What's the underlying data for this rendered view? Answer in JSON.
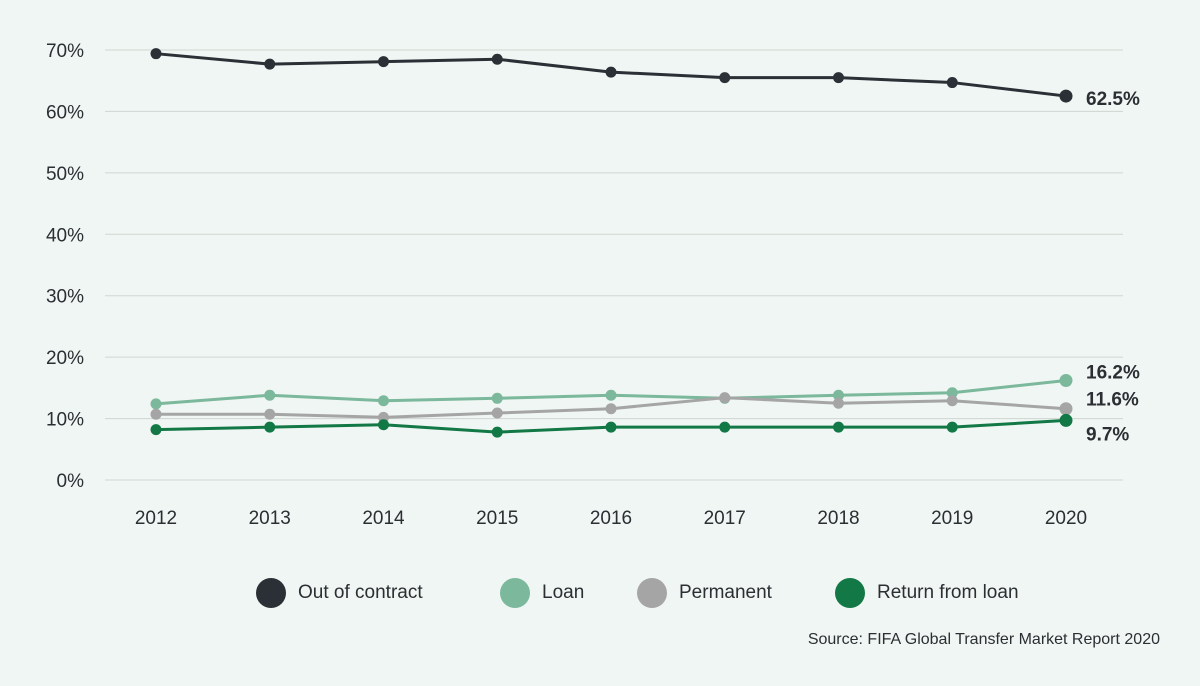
{
  "chart_data": {
    "type": "line",
    "title": "",
    "xlabel": "",
    "ylabel": "",
    "categories": [
      "2012",
      "2013",
      "2014",
      "2015",
      "2016",
      "2017",
      "2018",
      "2019",
      "2020"
    ],
    "ylim": [
      0,
      70
    ],
    "yticks": [
      "0%",
      "10%",
      "20%",
      "30%",
      "40%",
      "50%",
      "60%",
      "70%"
    ],
    "grid": true,
    "series": [
      {
        "name": "Out of contract",
        "color": "#2b3036",
        "values": [
          69.4,
          67.7,
          68.1,
          68.5,
          66.4,
          65.5,
          65.5,
          64.7,
          62.5
        ],
        "end_label": "62.5%"
      },
      {
        "name": "Loan",
        "color": "#7bb89c",
        "values": [
          12.4,
          13.8,
          12.9,
          13.3,
          13.8,
          13.3,
          13.8,
          14.2,
          16.2
        ],
        "end_label": "16.2%"
      },
      {
        "name": "Permanent",
        "color": "#a5a5a5",
        "values": [
          10.7,
          10.7,
          10.2,
          10.9,
          11.6,
          13.4,
          12.5,
          12.9,
          11.6
        ],
        "end_label": "11.6%"
      },
      {
        "name": "Return from loan",
        "color": "#127845",
        "values": [
          8.2,
          8.6,
          9.0,
          7.8,
          8.6,
          8.6,
          8.6,
          8.6,
          9.7
        ],
        "end_label": "9.7%"
      }
    ]
  },
  "source": "Source: FIFA Global Transfer Market Report 2020"
}
